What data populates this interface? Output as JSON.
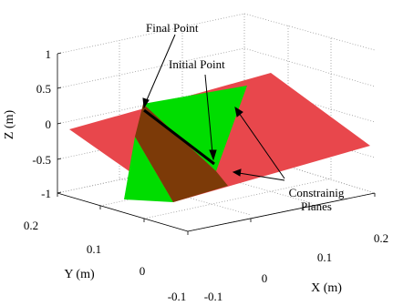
{
  "figure": {
    "axis_labels": {
      "x": "X (m)",
      "y": "Y (m)",
      "z": "Z (m)"
    },
    "z_ticks": [
      "1",
      "0.5",
      "0",
      "-0.5",
      "-1"
    ],
    "y_ticks": [
      "0.2",
      "0.1",
      "0",
      "-0.1"
    ],
    "x_ticks": [
      "-0.1",
      "0",
      "0.1",
      "0.2"
    ],
    "annotations": {
      "final_point": "Final Point",
      "initial_point": "Initial Point",
      "planes_line1": "Constrainig",
      "planes_line2": "Planes"
    },
    "colors": {
      "red_plane": "#e8474c",
      "green_plane": "#00dd00",
      "overlap": "#7c3a08",
      "path": "#000000"
    }
  }
}
